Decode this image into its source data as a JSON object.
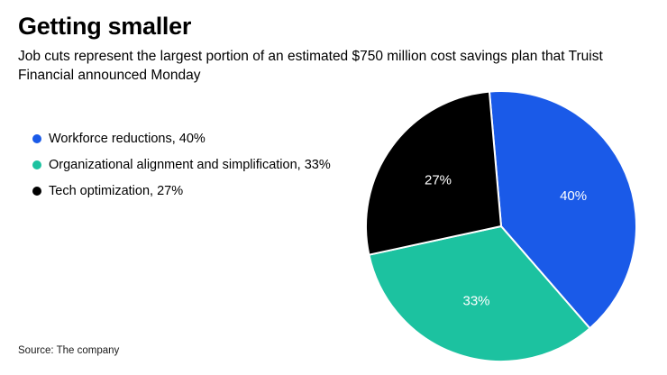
{
  "header": {
    "title": "Getting smaller",
    "subtitle": "Job cuts represent the largest portion of an estimated $750 million cost savings plan that Truist Financial announced Monday"
  },
  "source": "Source: The company",
  "chart_data": {
    "type": "pie",
    "title": "Getting smaller",
    "subtitle": "Job cuts represent the largest portion of an estimated $750 million cost savings plan that Truist Financial announced Monday",
    "legend_position": "left",
    "start_angle_deg": -5,
    "slice_separator_color": "#ffffff",
    "slices": [
      {
        "label": "Workforce reductions",
        "value": 40,
        "data_label": "40%",
        "color": "#1a5ae8"
      },
      {
        "label": "Organizational alignment and simplification",
        "value": 33,
        "data_label": "33%",
        "color": "#1cc2a0"
      },
      {
        "label": "Tech optimization",
        "value": 27,
        "data_label": "27%",
        "color": "#000000"
      }
    ],
    "source": "Source: The company"
  }
}
